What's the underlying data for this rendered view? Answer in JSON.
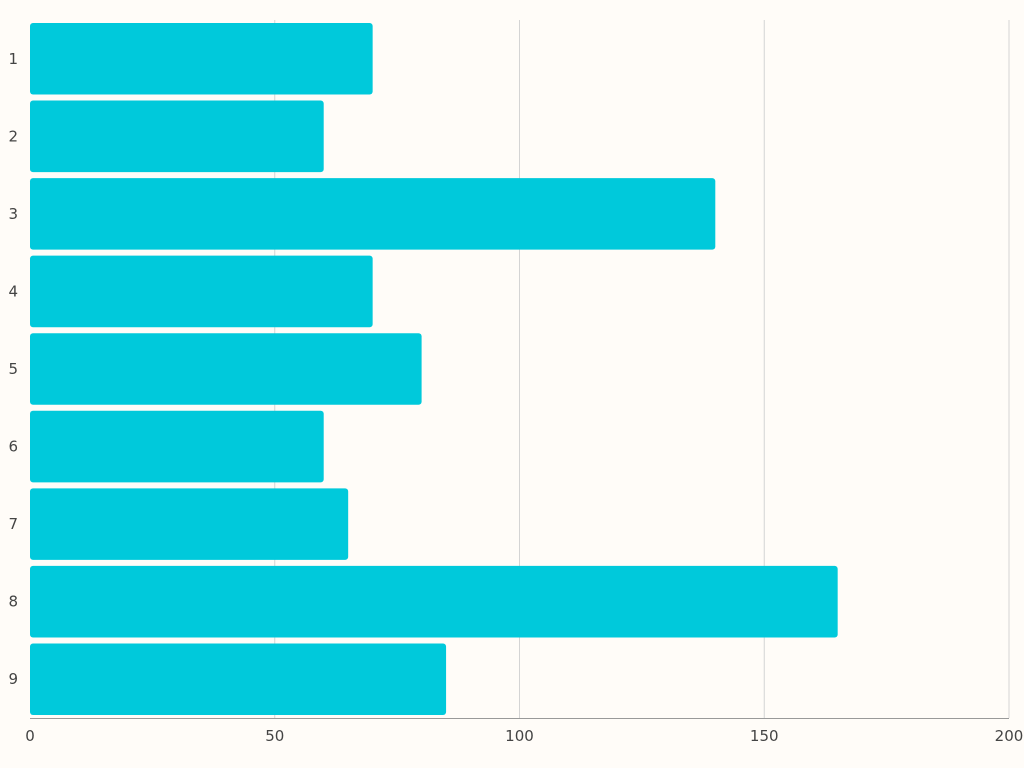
{
  "chart_data": {
    "type": "bar",
    "orientation": "horizontal",
    "categories": [
      "1",
      "2",
      "3",
      "4",
      "5",
      "6",
      "7",
      "8",
      "9"
    ],
    "values": [
      70,
      60,
      140,
      70,
      80,
      60,
      65,
      165,
      85
    ],
    "xlim": [
      0,
      200
    ],
    "x_ticks": [
      "0",
      "50",
      "100",
      "150",
      "200"
    ],
    "title": "",
    "xlabel": "",
    "ylabel": "",
    "grid": true,
    "bar_color": "#00c9db",
    "grid_color": "#d4d4d4",
    "background_color": "#fffcf8"
  }
}
